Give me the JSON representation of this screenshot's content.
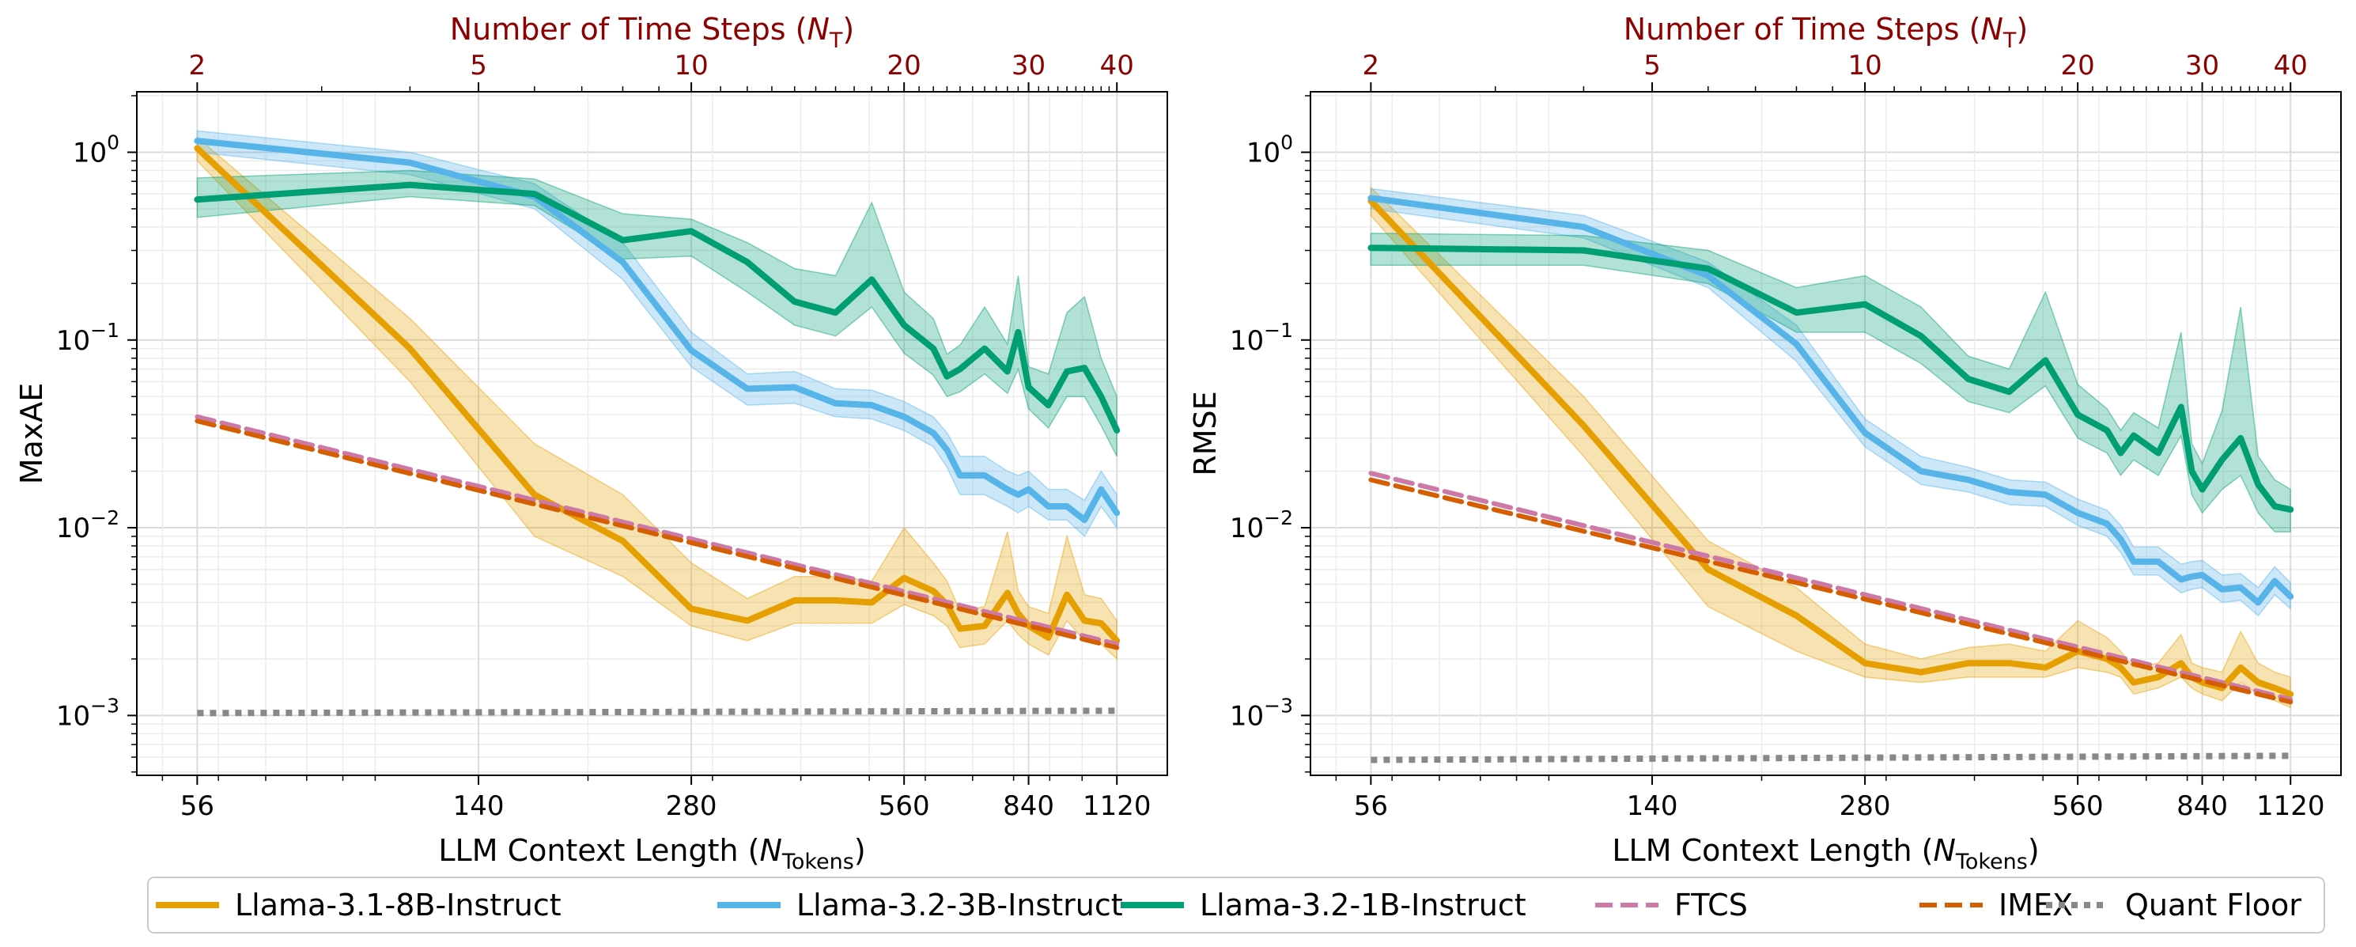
{
  "chart_data": [
    {
      "type": "line",
      "panel": "left",
      "ylabel": "MaxAE",
      "xlabel": "LLM Context Length (N_Tokens)",
      "xlabel_main": "LLM Context Length (",
      "xlabel_sym": "N",
      "xlabel_sub": "Tokens",
      "xlabel_end": ")",
      "top_label_main": "Number of Time Steps (",
      "top_label_sym": "N",
      "top_label_sub": "T",
      "top_label_end": ")",
      "xscale": "log",
      "yscale": "log",
      "xlim": [
        46,
        1320
      ],
      "ylim": [
        0.00048,
        2.1
      ],
      "x_ticks": [
        56,
        140,
        280,
        560,
        840,
        1120
      ],
      "x_tick_labels": [
        "56",
        "140",
        "280",
        "560",
        "840",
        "1120"
      ],
      "top_ticks": [
        2,
        5,
        10,
        20,
        30,
        40
      ],
      "top_tick_labels": [
        "2",
        "5",
        "10",
        "20",
        "30",
        "40"
      ],
      "y_ticks": [
        1,
        0.1,
        0.01,
        0.001
      ],
      "y_tick_labels": [
        {
          "base": "10",
          "exp": "0"
        },
        {
          "base": "10",
          "exp": "−1"
        },
        {
          "base": "10",
          "exp": "−2"
        },
        {
          "base": "10",
          "exp": "−3"
        }
      ],
      "grid": true,
      "series": [
        {
          "name": "Llama-3.1-8B-Instruct",
          "color": "#E69F00",
          "x": [
            56,
            112,
            168,
            224,
            280,
            336,
            392,
            448,
            504,
            560,
            616,
            644,
            672,
            728,
            784,
            812,
            840,
            896,
            952,
            1008,
            1064,
            1120
          ],
          "y": [
            1.05,
            0.09,
            0.015,
            0.0085,
            0.0037,
            0.0032,
            0.0041,
            0.0041,
            0.004,
            0.0054,
            0.0046,
            0.0039,
            0.0029,
            0.003,
            0.0045,
            0.0035,
            0.003,
            0.0026,
            0.0044,
            0.0032,
            0.0031,
            0.0025
          ],
          "lower": [
            0.9,
            0.06,
            0.009,
            0.0055,
            0.003,
            0.0025,
            0.0031,
            0.0031,
            0.0031,
            0.0039,
            0.0034,
            0.003,
            0.0023,
            0.0024,
            0.0032,
            0.0027,
            0.0024,
            0.0021,
            0.0032,
            0.0025,
            0.0024,
            0.002
          ],
          "upper": [
            1.2,
            0.13,
            0.028,
            0.015,
            0.0065,
            0.0042,
            0.0055,
            0.0055,
            0.0052,
            0.01,
            0.0065,
            0.0052,
            0.0036,
            0.0038,
            0.0095,
            0.0046,
            0.0038,
            0.0035,
            0.009,
            0.0044,
            0.0042,
            0.0032
          ]
        },
        {
          "name": "Llama-3.2-3B-Instruct",
          "color": "#56B4E9",
          "x": [
            56,
            112,
            168,
            224,
            280,
            336,
            392,
            448,
            504,
            560,
            616,
            644,
            672,
            728,
            784,
            812,
            840,
            896,
            952,
            1008,
            1064,
            1120
          ],
          "y": [
            1.15,
            0.88,
            0.58,
            0.26,
            0.088,
            0.055,
            0.056,
            0.046,
            0.045,
            0.039,
            0.032,
            0.026,
            0.019,
            0.019,
            0.016,
            0.015,
            0.016,
            0.013,
            0.013,
            0.011,
            0.016,
            0.012
          ],
          "lower": [
            1.0,
            0.76,
            0.5,
            0.21,
            0.072,
            0.045,
            0.046,
            0.039,
            0.038,
            0.033,
            0.027,
            0.021,
            0.015,
            0.015,
            0.013,
            0.012,
            0.013,
            0.011,
            0.011,
            0.009,
            0.013,
            0.01
          ],
          "upper": [
            1.3,
            1.0,
            0.68,
            0.33,
            0.11,
            0.066,
            0.068,
            0.055,
            0.054,
            0.047,
            0.039,
            0.032,
            0.024,
            0.024,
            0.02,
            0.019,
            0.02,
            0.016,
            0.016,
            0.014,
            0.02,
            0.015
          ]
        },
        {
          "name": "Llama-3.2-1B-Instruct",
          "color": "#009E73",
          "x": [
            56,
            112,
            168,
            224,
            280,
            336,
            392,
            448,
            504,
            560,
            616,
            644,
            672,
            728,
            784,
            812,
            840,
            896,
            952,
            1008,
            1064,
            1120
          ],
          "y": [
            0.56,
            0.67,
            0.6,
            0.34,
            0.38,
            0.26,
            0.16,
            0.14,
            0.21,
            0.12,
            0.09,
            0.064,
            0.07,
            0.09,
            0.068,
            0.11,
            0.056,
            0.045,
            0.068,
            0.071,
            0.05,
            0.033
          ],
          "lower": [
            0.45,
            0.58,
            0.52,
            0.27,
            0.28,
            0.18,
            0.12,
            0.105,
            0.15,
            0.085,
            0.065,
            0.05,
            0.053,
            0.066,
            0.052,
            0.07,
            0.043,
            0.034,
            0.05,
            0.05,
            0.035,
            0.024
          ],
          "upper": [
            0.73,
            0.8,
            0.72,
            0.47,
            0.44,
            0.33,
            0.24,
            0.22,
            0.54,
            0.18,
            0.13,
            0.084,
            0.094,
            0.15,
            0.095,
            0.22,
            0.072,
            0.066,
            0.14,
            0.17,
            0.08,
            0.05
          ]
        },
        {
          "name": "FTCS",
          "color": "#CC79A7",
          "style": "dashed",
          "x": [
            56,
            1120
          ],
          "y": [
            0.039,
            0.0024
          ]
        },
        {
          "name": "IMEX",
          "color": "#D55E00",
          "style": "dashed",
          "x": [
            56,
            1120
          ],
          "y": [
            0.037,
            0.0023
          ]
        },
        {
          "name": "Quant Floor",
          "color": "#888888",
          "style": "dotted",
          "x": [
            56,
            1120
          ],
          "y": [
            0.00103,
            0.00106
          ]
        }
      ]
    },
    {
      "type": "line",
      "panel": "right",
      "ylabel": "RMSE",
      "xlabel": "LLM Context Length (N_Tokens)",
      "xlabel_main": "LLM Context Length (",
      "xlabel_sym": "N",
      "xlabel_sub": "Tokens",
      "xlabel_end": ")",
      "top_label_main": "Number of Time Steps (",
      "top_label_sym": "N",
      "top_label_sub": "T",
      "top_label_end": ")",
      "xscale": "log",
      "yscale": "log",
      "xlim": [
        46,
        1320
      ],
      "ylim": [
        0.00048,
        2.1
      ],
      "x_ticks": [
        56,
        140,
        280,
        560,
        840,
        1120
      ],
      "x_tick_labels": [
        "56",
        "140",
        "280",
        "560",
        "840",
        "1120"
      ],
      "top_ticks": [
        2,
        5,
        10,
        20,
        30,
        40
      ],
      "top_tick_labels": [
        "2",
        "5",
        "10",
        "20",
        "30",
        "40"
      ],
      "y_ticks": [
        1,
        0.1,
        0.01,
        0.001
      ],
      "y_tick_labels": [
        {
          "base": "10",
          "exp": "0"
        },
        {
          "base": "10",
          "exp": "−1"
        },
        {
          "base": "10",
          "exp": "−2"
        },
        {
          "base": "10",
          "exp": "−3"
        }
      ],
      "grid": true,
      "series": [
        {
          "name": "Llama-3.1-8B-Instruct",
          "color": "#E69F00",
          "x": [
            56,
            112,
            168,
            224,
            280,
            336,
            392,
            448,
            504,
            560,
            616,
            644,
            672,
            728,
            784,
            812,
            840,
            896,
            952,
            1008,
            1064,
            1120
          ],
          "y": [
            0.55,
            0.035,
            0.006,
            0.0034,
            0.0019,
            0.0017,
            0.0019,
            0.0019,
            0.0018,
            0.0022,
            0.002,
            0.0018,
            0.0015,
            0.0016,
            0.0019,
            0.0016,
            0.0015,
            0.0014,
            0.0018,
            0.0015,
            0.0014,
            0.0013
          ],
          "lower": [
            0.46,
            0.024,
            0.0038,
            0.0022,
            0.0016,
            0.0015,
            0.0016,
            0.0016,
            0.0016,
            0.0018,
            0.0017,
            0.0016,
            0.0013,
            0.0014,
            0.0016,
            0.0014,
            0.0013,
            0.0012,
            0.0015,
            0.0013,
            0.0012,
            0.0011
          ],
          "upper": [
            0.65,
            0.05,
            0.0085,
            0.0048,
            0.0024,
            0.002,
            0.0023,
            0.0024,
            0.0022,
            0.0032,
            0.0026,
            0.0022,
            0.0018,
            0.0019,
            0.0027,
            0.0019,
            0.0018,
            0.0017,
            0.0028,
            0.0019,
            0.0017,
            0.0016
          ]
        },
        {
          "name": "Llama-3.2-3B-Instruct",
          "color": "#56B4E9",
          "x": [
            56,
            112,
            168,
            224,
            280,
            336,
            392,
            448,
            504,
            560,
            616,
            644,
            672,
            728,
            784,
            812,
            840,
            896,
            952,
            1008,
            1064,
            1120
          ],
          "y": [
            0.57,
            0.4,
            0.22,
            0.095,
            0.032,
            0.02,
            0.018,
            0.0155,
            0.015,
            0.012,
            0.0105,
            0.0087,
            0.0066,
            0.0066,
            0.0053,
            0.0055,
            0.0056,
            0.0047,
            0.0048,
            0.004,
            0.0052,
            0.0043
          ],
          "lower": [
            0.5,
            0.35,
            0.19,
            0.077,
            0.027,
            0.017,
            0.0155,
            0.0133,
            0.013,
            0.0103,
            0.009,
            0.0074,
            0.0056,
            0.0056,
            0.0045,
            0.0047,
            0.0048,
            0.004,
            0.0041,
            0.0034,
            0.0044,
            0.0037
          ],
          "upper": [
            0.64,
            0.46,
            0.26,
            0.12,
            0.038,
            0.024,
            0.021,
            0.018,
            0.0175,
            0.0142,
            0.0124,
            0.0103,
            0.0079,
            0.0079,
            0.0064,
            0.0066,
            0.0067,
            0.0056,
            0.0057,
            0.0048,
            0.0062,
            0.0051
          ]
        },
        {
          "name": "Llama-3.2-1B-Instruct",
          "color": "#009E73",
          "x": [
            56,
            112,
            168,
            224,
            280,
            336,
            392,
            448,
            504,
            560,
            616,
            644,
            672,
            728,
            784,
            812,
            840,
            896,
            952,
            1008,
            1064,
            1120
          ],
          "y": [
            0.31,
            0.3,
            0.24,
            0.14,
            0.155,
            0.105,
            0.062,
            0.053,
            0.078,
            0.04,
            0.033,
            0.025,
            0.031,
            0.025,
            0.044,
            0.02,
            0.016,
            0.023,
            0.03,
            0.017,
            0.013,
            0.0125
          ],
          "lower": [
            0.25,
            0.25,
            0.2,
            0.11,
            0.11,
            0.075,
            0.047,
            0.041,
            0.057,
            0.03,
            0.025,
            0.019,
            0.023,
            0.019,
            0.031,
            0.015,
            0.012,
            0.016,
            0.019,
            0.012,
            0.0095,
            0.0095
          ],
          "upper": [
            0.37,
            0.36,
            0.3,
            0.19,
            0.22,
            0.15,
            0.082,
            0.07,
            0.18,
            0.058,
            0.043,
            0.033,
            0.041,
            0.034,
            0.11,
            0.028,
            0.022,
            0.042,
            0.15,
            0.024,
            0.018,
            0.016
          ]
        },
        {
          "name": "FTCS",
          "color": "#CC79A7",
          "style": "dashed",
          "x": [
            56,
            1120
          ],
          "y": [
            0.0195,
            0.00122
          ]
        },
        {
          "name": "IMEX",
          "color": "#D55E00",
          "style": "dashed",
          "x": [
            56,
            1120
          ],
          "y": [
            0.018,
            0.00118
          ]
        },
        {
          "name": "Quant Floor",
          "color": "#888888",
          "style": "dotted",
          "x": [
            56,
            1120
          ],
          "y": [
            0.00058,
            0.00061
          ]
        }
      ]
    }
  ],
  "legend": {
    "placement": "bottom-center",
    "entries": [
      {
        "label": "Llama-3.1-8B-Instruct",
        "color": "#E69F00",
        "style": "solid"
      },
      {
        "label": "Llama-3.2-3B-Instruct",
        "color": "#56B4E9",
        "style": "solid"
      },
      {
        "label": "Llama-3.2-1B-Instruct",
        "color": "#009E73",
        "style": "solid"
      },
      {
        "label": "FTCS",
        "color": "#CC79A7",
        "style": "dashed"
      },
      {
        "label": "IMEX",
        "color": "#D55E00",
        "style": "dashed"
      },
      {
        "label": "Quant Floor",
        "color": "#888888",
        "style": "dotted"
      }
    ]
  }
}
